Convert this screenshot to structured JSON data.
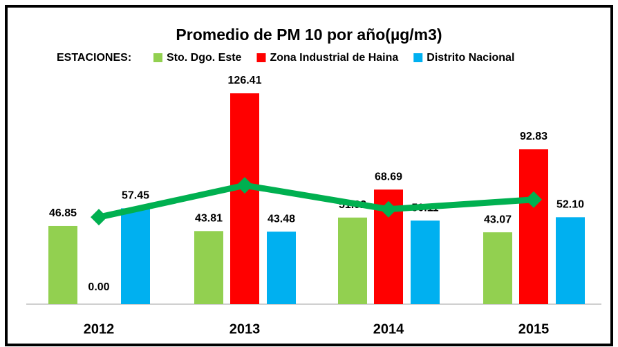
{
  "chart_data": {
    "type": "bar",
    "title": "Promedio de PM 10 por año(µg/m3)",
    "legend_title": "ESTACIONES:",
    "categories": [
      "2012",
      "2013",
      "2014",
      "2015"
    ],
    "series": [
      {
        "name": "Sto. Dgo. Este",
        "color": "#92d050",
        "values": [
          46.85,
          43.81,
          51.92,
          43.07
        ],
        "value_labels": [
          "46.85",
          "43.81",
          "51.92",
          "43.07"
        ]
      },
      {
        "name": "Zona Industrial de Haina",
        "color": "#ff0000",
        "values": [
          0,
          126.41,
          68.69,
          92.83
        ],
        "value_labels": [
          "0.00",
          "126.41",
          "68.69",
          "92.83"
        ]
      },
      {
        "name": "Distrito Nacional",
        "color": "#00b0f0",
        "values": [
          57.45,
          43.48,
          50.11,
          52.1
        ],
        "value_labels": [
          "57.45",
          "43.48",
          "50.11",
          "52.10"
        ]
      },
      {
        "type": "line",
        "color": "#00b050",
        "values": [
          52.15,
          71.23,
          56.91,
          62.67
        ]
      }
    ],
    "ylim": [
      0,
      126.41
    ],
    "legend": "top"
  }
}
